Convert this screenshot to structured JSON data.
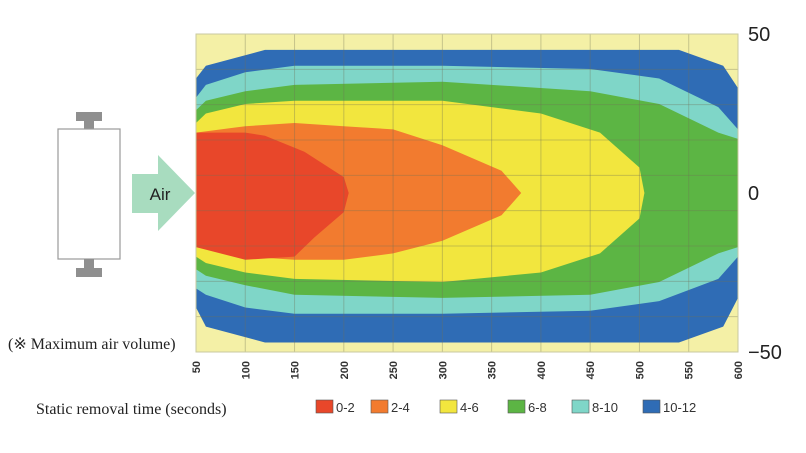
{
  "chart_data": {
    "type": "heatmap",
    "subtype": "filled-contour",
    "title": "",
    "xlabel": "",
    "ylabel": "",
    "x_ticks": [
      "50",
      "100",
      "150",
      "200",
      "250",
      "300",
      "350",
      "400",
      "450",
      "500",
      "550",
      "600"
    ],
    "xlim": [
      50,
      600
    ],
    "y_ticks": [
      "50",
      "0",
      "−50"
    ],
    "ylim": [
      -50,
      50
    ],
    "grid": true,
    "legend_title": "Static removal time (seconds)",
    "legend_position": "bottom",
    "note": "(※ Maximum air volume)",
    "airflow_label": "Air",
    "levels": [
      {
        "label": "0-2",
        "range": [
          0,
          2
        ],
        "color": "#e8472a"
      },
      {
        "label": "2-4",
        "range": [
          2,
          4
        ],
        "color": "#f27b2f"
      },
      {
        "label": "4-6",
        "range": [
          4,
          6
        ],
        "color": "#f2e63e"
      },
      {
        "label": "6-8",
        "range": [
          6,
          8
        ],
        "color": "#5cb544"
      },
      {
        "label": "8-10",
        "range": [
          8,
          10
        ],
        "color": "#7fd6c8"
      },
      {
        "label": "10-12",
        "range": [
          10,
          12
        ],
        "color": "#2f6cb5"
      }
    ],
    "background_color": "#f4f0a6",
    "regions": [
      {
        "level": "10-12",
        "boundary": [
          [
            50,
            36
          ],
          [
            60,
            40
          ],
          [
            120,
            45
          ],
          [
            300,
            45
          ],
          [
            450,
            45
          ],
          [
            540,
            45
          ],
          [
            585,
            40
          ],
          [
            600,
            33
          ],
          [
            600,
            -33
          ],
          [
            585,
            -42
          ],
          [
            540,
            -47
          ],
          [
            450,
            -47
          ],
          [
            300,
            -47
          ],
          [
            120,
            -47
          ],
          [
            60,
            -42
          ],
          [
            50,
            -36
          ]
        ]
      },
      {
        "level": "8-10",
        "boundary": [
          [
            50,
            30
          ],
          [
            60,
            34
          ],
          [
            100,
            38
          ],
          [
            150,
            40
          ],
          [
            300,
            40
          ],
          [
            450,
            39
          ],
          [
            520,
            36
          ],
          [
            580,
            27
          ],
          [
            600,
            20
          ],
          [
            600,
            -20
          ],
          [
            580,
            -27
          ],
          [
            520,
            -34
          ],
          [
            450,
            -37
          ],
          [
            300,
            -38
          ],
          [
            150,
            -38
          ],
          [
            100,
            -36
          ],
          [
            60,
            -32
          ],
          [
            50,
            -30
          ]
        ]
      },
      {
        "level": "6-8",
        "boundary": [
          [
            50,
            26
          ],
          [
            60,
            29
          ],
          [
            100,
            32
          ],
          [
            150,
            34
          ],
          [
            300,
            35
          ],
          [
            450,
            32
          ],
          [
            520,
            28
          ],
          [
            580,
            19
          ],
          [
            600,
            17
          ],
          [
            600,
            -17
          ],
          [
            580,
            -19
          ],
          [
            520,
            -28
          ],
          [
            450,
            -32
          ],
          [
            300,
            -33
          ],
          [
            150,
            -32
          ],
          [
            100,
            -29
          ],
          [
            60,
            -26
          ],
          [
            50,
            -24
          ]
        ]
      },
      {
        "level": "4-6",
        "boundary": [
          [
            50,
            22
          ],
          [
            60,
            25
          ],
          [
            100,
            28
          ],
          [
            150,
            29
          ],
          [
            300,
            29
          ],
          [
            400,
            25
          ],
          [
            460,
            19
          ],
          [
            500,
            8
          ],
          [
            505,
            0
          ],
          [
            500,
            -8
          ],
          [
            460,
            -19
          ],
          [
            400,
            -25
          ],
          [
            300,
            -28
          ],
          [
            150,
            -27
          ],
          [
            100,
            -25
          ],
          [
            60,
            -22
          ],
          [
            50,
            -20
          ]
        ]
      },
      {
        "level": "2-4",
        "boundary": [
          [
            50,
            19
          ],
          [
            100,
            21
          ],
          [
            150,
            22
          ],
          [
            200,
            21
          ],
          [
            250,
            20
          ],
          [
            300,
            15
          ],
          [
            360,
            7
          ],
          [
            380,
            0
          ],
          [
            360,
            -7
          ],
          [
            300,
            -15
          ],
          [
            250,
            -19
          ],
          [
            200,
            -21
          ],
          [
            150,
            -21
          ],
          [
            100,
            -20
          ],
          [
            50,
            -17
          ]
        ]
      },
      {
        "level": "0-2",
        "boundary": [
          [
            50,
            19
          ],
          [
            100,
            19
          ],
          [
            120,
            18
          ],
          [
            160,
            13
          ],
          [
            200,
            5
          ],
          [
            205,
            0
          ],
          [
            200,
            -6
          ],
          [
            170,
            -14
          ],
          [
            150,
            -20
          ],
          [
            100,
            -21
          ],
          [
            50,
            -17
          ]
        ]
      }
    ]
  }
}
